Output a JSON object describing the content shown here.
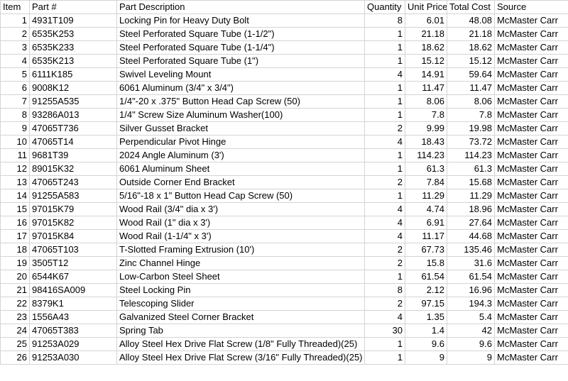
{
  "headers": [
    "Item",
    "Part #",
    "Part Description",
    "Quantity",
    "Unit Price",
    "Total Cost",
    "Source"
  ],
  "rows": [
    [
      "1",
      "4931T109",
      "Locking Pin for Heavy Duty Bolt",
      "8",
      "6.01",
      "48.08",
      "McMaster Carr"
    ],
    [
      "2",
      "6535K253",
      "Steel Perforated Square Tube (1-1/2\")",
      "1",
      "21.18",
      "21.18",
      "McMaster Carr"
    ],
    [
      "3",
      "6535K233",
      "Steel Perforated Square Tube (1-1/4\")",
      "1",
      "18.62",
      "18.62",
      "McMaster Carr"
    ],
    [
      "4",
      "6535K213",
      "Steel Perforated Square Tube (1\")",
      "1",
      "15.12",
      "15.12",
      "McMaster Carr"
    ],
    [
      "5",
      "6111K185",
      "Swivel Leveling Mount",
      "4",
      "14.91",
      "59.64",
      "McMaster Carr"
    ],
    [
      "6",
      "9008K12",
      "6061 Aluminum (3/4\" x 3/4\")",
      "1",
      "11.47",
      "11.47",
      "McMaster Carr"
    ],
    [
      "7",
      "91255A535",
      "1/4\"-20 x .375\" Button Head Cap Screw (50)",
      "1",
      "8.06",
      "8.06",
      "McMaster Carr"
    ],
    [
      "8",
      "93286A013",
      "1/4\" Screw Size Aluminum Washer(100)",
      "1",
      "7.8",
      "7.8",
      "McMaster Carr"
    ],
    [
      "9",
      "47065T736",
      "Silver Gusset Bracket",
      "2",
      "9.99",
      "19.98",
      "McMaster Carr"
    ],
    [
      "10",
      "47065T14",
      "Perpendicular Pivot Hinge",
      "4",
      "18.43",
      "73.72",
      "McMaster Carr"
    ],
    [
      "11",
      "9681T39",
      "2024 Angle Aluminum (3')",
      "1",
      "114.23",
      "114.23",
      "McMaster Carr"
    ],
    [
      "12",
      "89015K32",
      "6061 Aluminum Sheet",
      "1",
      "61.3",
      "61.3",
      "McMaster Carr"
    ],
    [
      "13",
      "47065T243",
      "Outside Corner End Bracket",
      "2",
      "7.84",
      "15.68",
      "McMaster Carr"
    ],
    [
      "14",
      "91255A583",
      "5/16\"-18 x 1\" Button Head Cap Screw (50)",
      "1",
      "11.29",
      "11.29",
      "McMaster Carr"
    ],
    [
      "15",
      "97015K79",
      "Wood Rail (3/4\" dia x 3')",
      "4",
      "4.74",
      "18.96",
      "McMaster Carr"
    ],
    [
      "16",
      "97015K82",
      "Wood Rail (1\" dia x 3')",
      "4",
      "6.91",
      "27.64",
      "McMaster Carr"
    ],
    [
      "17",
      "97015K84",
      "Wood Rail (1-1/4\" x 3')",
      "4",
      "11.17",
      "44.68",
      "McMaster Carr"
    ],
    [
      "18",
      "47065T103",
      "T-Slotted Framing Extrusion (10')",
      "2",
      "67.73",
      "135.46",
      "McMaster Carr"
    ],
    [
      "19",
      "3505T12",
      "Zinc Channel Hinge",
      "2",
      "15.8",
      "31.6",
      "McMaster Carr"
    ],
    [
      "20",
      "6544K67",
      "Low-Carbon Steel Sheet",
      "1",
      "61.54",
      "61.54",
      "McMaster Carr"
    ],
    [
      "21",
      "98416SA009",
      "Steel Locking Pin",
      "8",
      "2.12",
      "16.96",
      "McMaster Carr"
    ],
    [
      "22",
      "8379K1",
      "Telescoping Slider",
      "2",
      "97.15",
      "194.3",
      "McMaster Carr"
    ],
    [
      "23",
      "1556A43",
      "Galvanized Steel Corner Bracket",
      "4",
      "1.35",
      "5.4",
      "McMaster Carr"
    ],
    [
      "24",
      "47065T383",
      "Spring Tab",
      "30",
      "1.4",
      "42",
      "McMaster Carr"
    ],
    [
      "25",
      "91253A029",
      "Alloy Steel Hex Drive Flat Screw (1/8\" Fully Threaded)(25)",
      "1",
      "9.6",
      "9.6",
      "McMaster Carr"
    ],
    [
      "26",
      "91253A030",
      "Alloy Steel Hex Drive Flat Screw (3/16\" Fully Threaded)(25)",
      "1",
      "9",
      "9",
      "McMaster Carr"
    ]
  ]
}
